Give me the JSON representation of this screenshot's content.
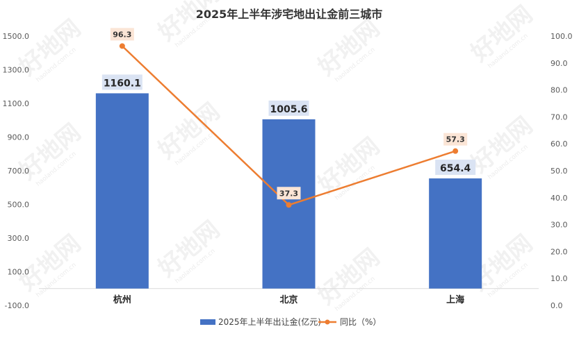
{
  "chart_data": {
    "type": "bar",
    "title": "2025年上半年涉宅地出让金前三城市",
    "categories": [
      "杭州",
      "北京",
      "上海"
    ],
    "series": [
      {
        "name": "2025年上半年出让金(亿元)",
        "type": "bar",
        "axis": "left",
        "values": [
          1160.1,
          1005.6,
          654.4
        ],
        "labels": [
          "1160.1",
          "1005.6",
          "654.4"
        ],
        "color": "#4472C4"
      },
      {
        "name": "同比（%）",
        "type": "line",
        "axis": "right",
        "values": [
          96.3,
          37.3,
          57.3
        ],
        "labels": [
          "96.3",
          "37.3",
          "57.3"
        ],
        "color": "#ED7D31"
      }
    ],
    "y_left": {
      "min": -100,
      "max": 1500,
      "ticks": [
        "1500.0",
        "1300.0",
        "1100.0",
        "900.0",
        "700.0",
        "500.0",
        "300.0",
        "100.0",
        "-100.0"
      ],
      "tick_values": [
        1500,
        1300,
        1100,
        900,
        700,
        500,
        300,
        100,
        -100
      ]
    },
    "y_right": {
      "min": 0,
      "max": 100,
      "ticks": [
        "100.0",
        "90.0",
        "80.0",
        "70.0",
        "60.0",
        "50.0",
        "40.0",
        "30.0",
        "20.0",
        "10.0",
        "0.0"
      ],
      "tick_values": [
        100,
        90,
        80,
        70,
        60,
        50,
        40,
        30,
        20,
        10,
        0
      ]
    },
    "grid": false,
    "legend_position": "bottom"
  },
  "watermark": {
    "text": "好地网",
    "url": "haoland.com.cn"
  }
}
